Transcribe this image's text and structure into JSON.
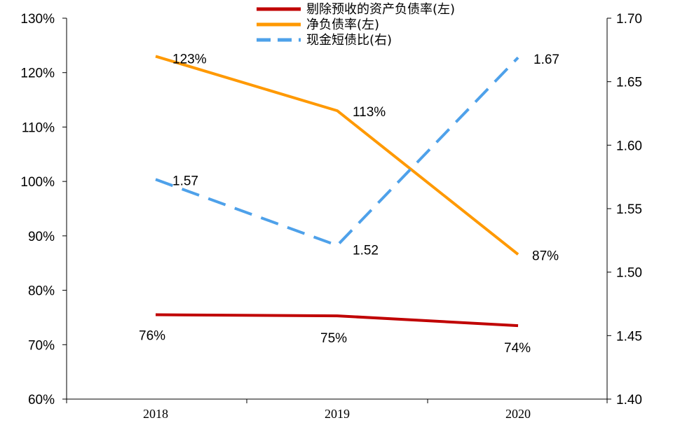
{
  "chart_data": {
    "type": "line",
    "categories": [
      "2018",
      "2019",
      "2020"
    ],
    "y_left": {
      "ylim": [
        0.6,
        1.3
      ],
      "ticks": [
        "60%",
        "70%",
        "80%",
        "90%",
        "100%",
        "110%",
        "120%",
        "130%"
      ]
    },
    "y_right": {
      "ylim": [
        1.4,
        1.7
      ],
      "ticks": [
        "1.40",
        "1.45",
        "1.50",
        "1.55",
        "1.60",
        "1.65",
        "1.70"
      ]
    },
    "legend_position": "top-center",
    "series": [
      {
        "name": "剔除预收的资产负债率(左)",
        "axis": "left",
        "color": "#C00000",
        "dash": "solid",
        "values": [
          0.755,
          0.753,
          0.735
        ],
        "labels": [
          "76%",
          "75%",
          "74%"
        ]
      },
      {
        "name": "净负债率(左)",
        "axis": "left",
        "color": "#FF9900",
        "dash": "solid",
        "values": [
          1.23,
          1.13,
          0.866
        ],
        "labels": [
          "123%",
          "113%",
          "87%"
        ]
      },
      {
        "name": "现金短债比(右)",
        "axis": "right",
        "color": "#4EA1EA",
        "dash": "dashed",
        "values": [
          1.573,
          1.521,
          1.669
        ],
        "labels": [
          "1.57",
          "1.52",
          "1.67"
        ]
      }
    ]
  }
}
